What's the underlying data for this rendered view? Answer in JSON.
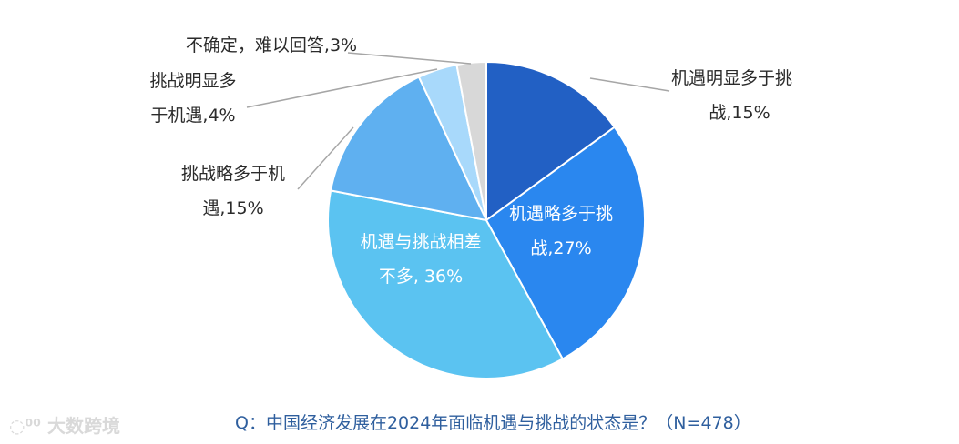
{
  "chart_data": {
    "type": "pie",
    "slices": [
      {
        "label_lines": [
          "机遇明显多于挑",
          "战,15%"
        ],
        "value": 15,
        "color": "#2260c4"
      },
      {
        "label_lines": [
          "机遇略多于挑",
          "战,27%"
        ],
        "value": 27,
        "color": "#2a87ef"
      },
      {
        "label_lines": [
          "机遇与挑战相差",
          "不多, 36%"
        ],
        "value": 36,
        "color": "#5bc3f1"
      },
      {
        "label_lines": [
          "挑战略多于机",
          "遇,15%"
        ],
        "value": 15,
        "color": "#5fb0f0"
      },
      {
        "label_lines": [
          "挑战明显多",
          "于机遇,4%"
        ],
        "value": 4,
        "color": "#a8d9fb"
      },
      {
        "label_lines": [
          "不确定，难以回答,3%"
        ],
        "value": 3,
        "color": "#d8d8d8"
      }
    ],
    "caption": "Q：中国经济发展在2024年面临机遇与挑战的状态是？（N=478）",
    "watermark": "大数跨境"
  }
}
